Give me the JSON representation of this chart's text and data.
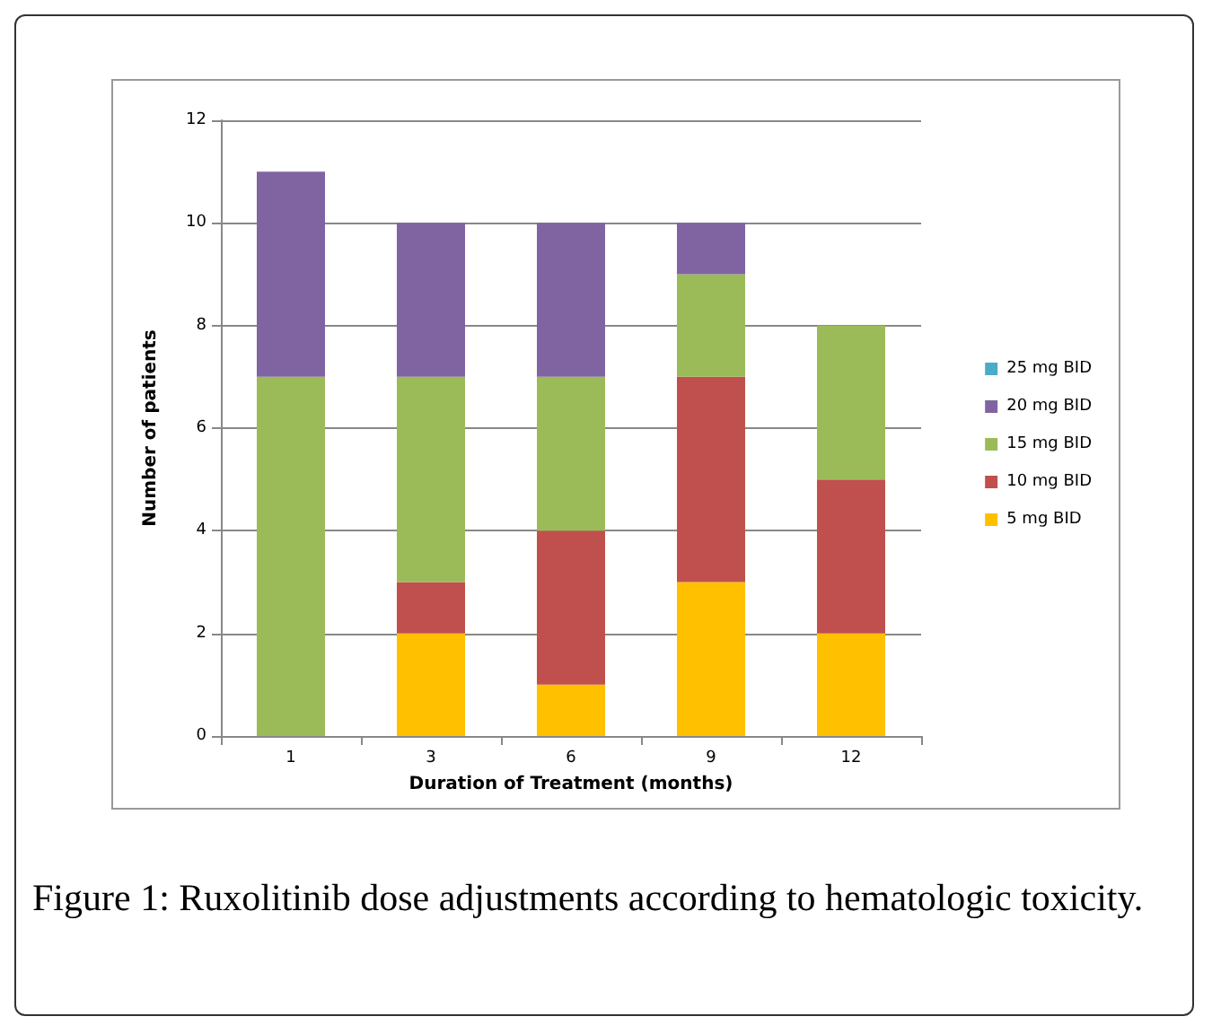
{
  "chart_data": {
    "type": "bar",
    "stacked": true,
    "xlabel": "Duration of Treatment (months)",
    "ylabel": "Number of patients",
    "categories": [
      "1",
      "3",
      "6",
      "9",
      "12"
    ],
    "series": [
      {
        "name": "5 mg BID",
        "color": "#ffc000",
        "values": [
          0,
          2,
          1,
          3,
          2
        ]
      },
      {
        "name": "10 mg BID",
        "color": "#c0504d",
        "values": [
          0,
          1,
          3,
          4,
          3
        ]
      },
      {
        "name": "15 mg BID",
        "color": "#9bbb59",
        "values": [
          7,
          4,
          3,
          2,
          3
        ]
      },
      {
        "name": "20 mg BID",
        "color": "#8064a2",
        "values": [
          4,
          3,
          3,
          1,
          0
        ]
      },
      {
        "name": "25 mg BID",
        "color": "#4bacc6",
        "values": [
          0,
          0,
          0,
          0,
          0
        ]
      }
    ],
    "ylim": [
      0,
      12
    ],
    "yticks": [
      0,
      2,
      4,
      6,
      8,
      10,
      12
    ],
    "grid": "y",
    "legend": "right",
    "annotations": [
      "Figure 1: Ruxolitinib dose adjustments according to hematologic toxicity."
    ]
  }
}
